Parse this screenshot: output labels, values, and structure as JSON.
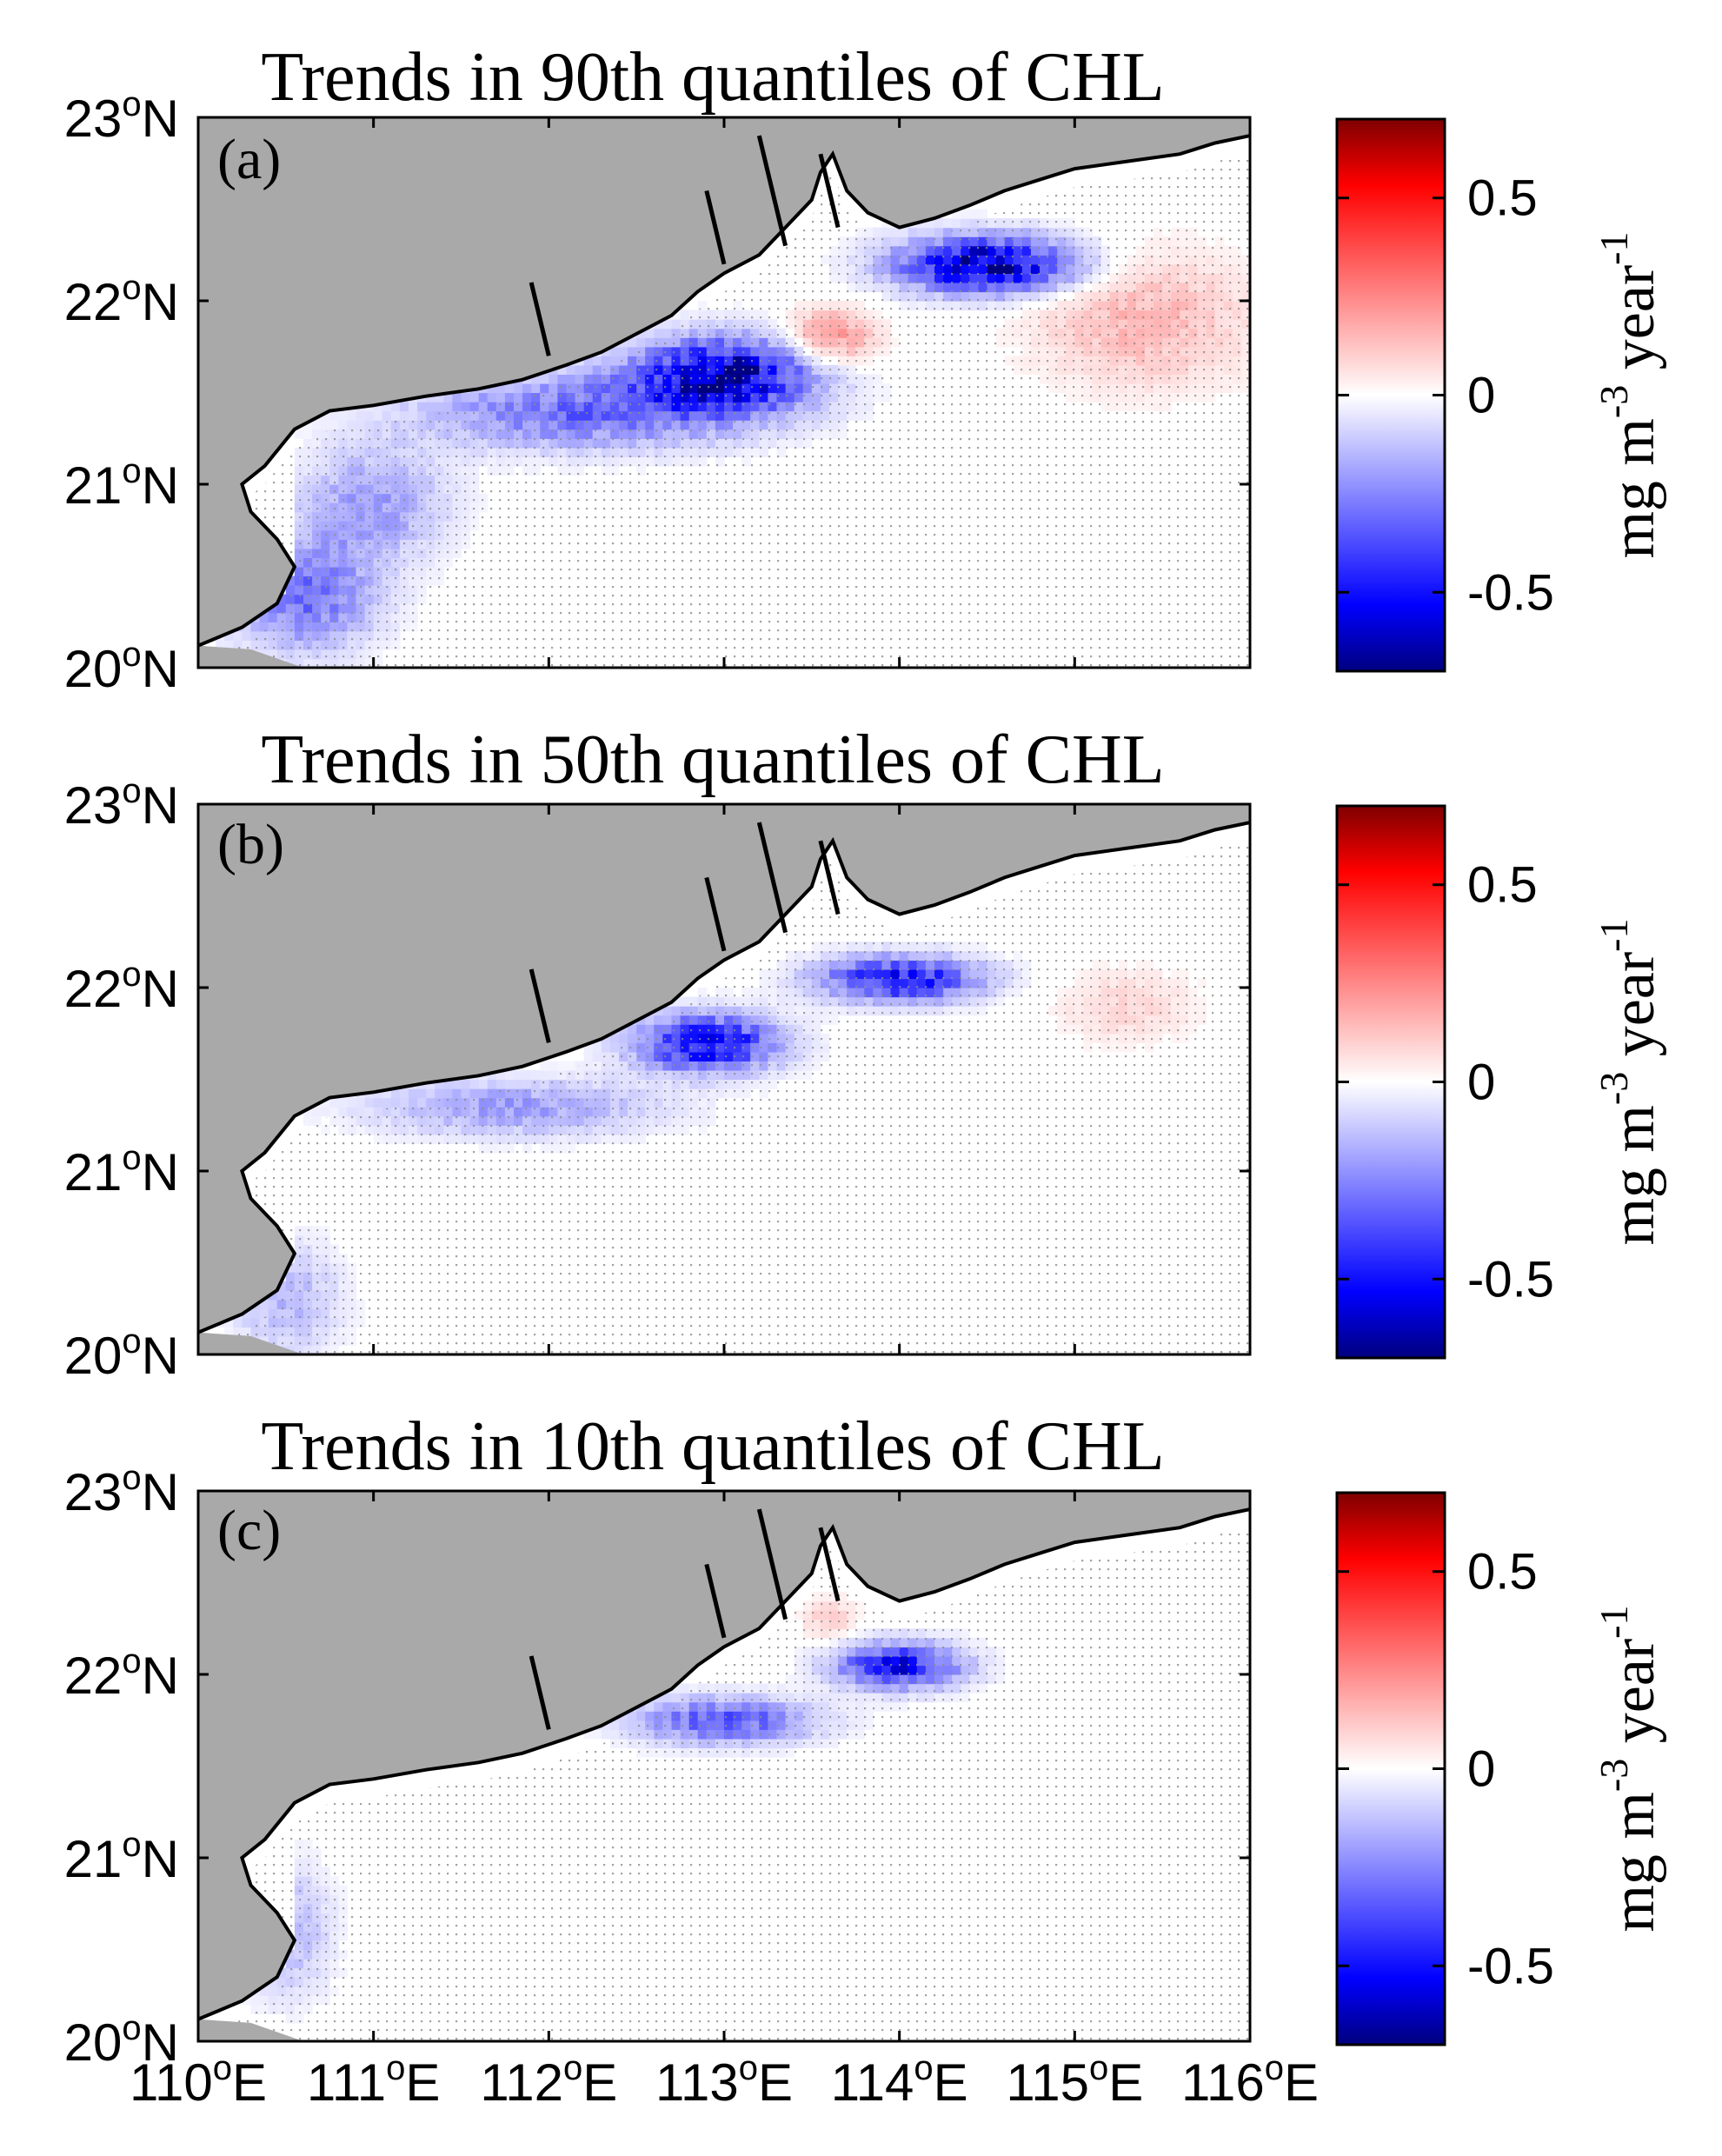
{
  "colors": {
    "land": "#a9a9a9",
    "coast": "#000000",
    "blue_max": "#00007f",
    "red_max": "#7f0000",
    "white": "#ffffff",
    "stipple": "#8c8c8c"
  },
  "chart_data": [
    {
      "type": "heatmap",
      "panel": "(a)",
      "title": "Trends in 90th quantiles of CHL",
      "x_label": "",
      "y_label": "",
      "xlim": [
        110,
        116
      ],
      "ylim": [
        20,
        23
      ],
      "xticks": [
        "110°E",
        "111°E",
        "112°E",
        "113°E",
        "114°E",
        "115°E",
        "116°E"
      ],
      "yticks": [
        "20°N",
        "21°N",
        "22°N",
        "23°N"
      ],
      "clim": [
        -0.7,
        0.7
      ],
      "features": [
        {
          "lon": 113.0,
          "lat": 21.6,
          "value": -0.6,
          "sx": 0.5,
          "sy": 0.2
        },
        {
          "lon": 114.5,
          "lat": 22.2,
          "value": -0.65,
          "sx": 0.5,
          "sy": 0.15
        },
        {
          "lon": 112.2,
          "lat": 21.4,
          "value": -0.3,
          "sx": 0.9,
          "sy": 0.2
        },
        {
          "lon": 110.6,
          "lat": 20.4,
          "value": -0.3,
          "sx": 0.4,
          "sy": 0.3
        },
        {
          "lon": 111.0,
          "lat": 20.9,
          "value": -0.2,
          "sx": 0.4,
          "sy": 0.3
        },
        {
          "lon": 115.4,
          "lat": 21.9,
          "value": 0.15,
          "sx": 0.6,
          "sy": 0.35
        },
        {
          "lon": 113.6,
          "lat": 21.8,
          "value": 0.25,
          "sx": 0.25,
          "sy": 0.15
        }
      ]
    },
    {
      "type": "heatmap",
      "panel": "(b)",
      "title": "Trends in 50th quantiles of CHL",
      "x_label": "",
      "y_label": "",
      "xlim": [
        110,
        116
      ],
      "ylim": [
        20,
        23
      ],
      "xticks": [
        "110°E",
        "111°E",
        "112°E",
        "113°E",
        "114°E",
        "115°E",
        "116°E"
      ],
      "yticks": [
        "20°N",
        "21°N",
        "22°N",
        "23°N"
      ],
      "clim": [
        -0.7,
        0.7
      ],
      "features": [
        {
          "lon": 112.9,
          "lat": 21.7,
          "value": -0.55,
          "sx": 0.4,
          "sy": 0.15
        },
        {
          "lon": 114.0,
          "lat": 22.05,
          "value": -0.5,
          "sx": 0.45,
          "sy": 0.12
        },
        {
          "lon": 111.8,
          "lat": 21.35,
          "value": -0.2,
          "sx": 0.8,
          "sy": 0.15
        },
        {
          "lon": 110.5,
          "lat": 20.3,
          "value": -0.15,
          "sx": 0.3,
          "sy": 0.3
        },
        {
          "lon": 115.3,
          "lat": 21.9,
          "value": 0.08,
          "sx": 0.4,
          "sy": 0.2
        }
      ]
    },
    {
      "type": "heatmap",
      "panel": "(c)",
      "title": "Trends in 10th quantiles of CHL",
      "x_label": "",
      "y_label": "",
      "xlim": [
        110,
        116
      ],
      "ylim": [
        20,
        23
      ],
      "xticks": [
        "110°E",
        "111°E",
        "112°E",
        "113°E",
        "114°E",
        "115°E",
        "116°E"
      ],
      "yticks": [
        "20°N",
        "21°N",
        "22°N",
        "23°N"
      ],
      "clim": [
        -0.7,
        0.7
      ],
      "features": [
        {
          "lon": 114.0,
          "lat": 22.05,
          "value": -0.5,
          "sx": 0.35,
          "sy": 0.12
        },
        {
          "lon": 113.0,
          "lat": 21.75,
          "value": -0.35,
          "sx": 0.5,
          "sy": 0.12
        },
        {
          "lon": 110.5,
          "lat": 20.6,
          "value": -0.15,
          "sx": 0.25,
          "sy": 0.35
        },
        {
          "lon": 113.6,
          "lat": 22.3,
          "value": 0.1,
          "sx": 0.15,
          "sy": 0.12
        }
      ]
    }
  ],
  "colorbar": {
    "ticks": [
      {
        "value": 0.5,
        "label": "0.5"
      },
      {
        "value": 0,
        "label": "0"
      },
      {
        "value": -0.5,
        "label": "-0.5"
      }
    ],
    "label_base": "mg m",
    "label_sup1": "-3",
    "label_mid": " year",
    "label_sup2": "-1"
  }
}
